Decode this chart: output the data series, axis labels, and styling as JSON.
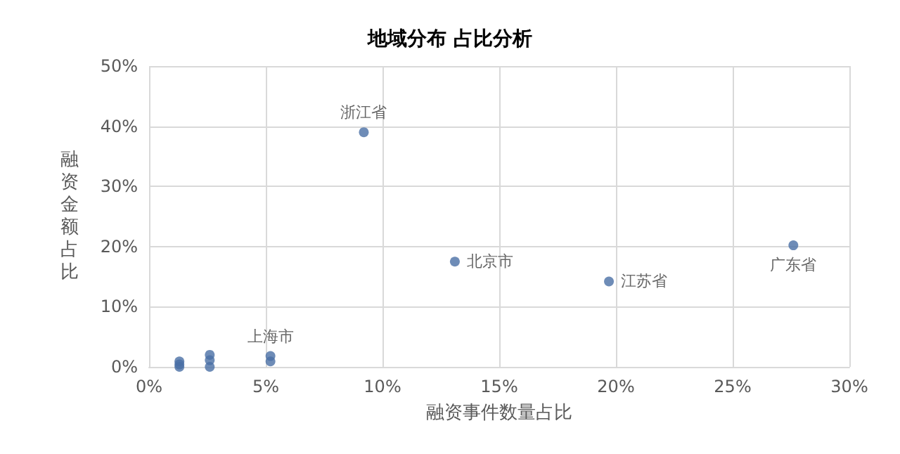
{
  "chart_data": {
    "type": "scatter",
    "title": "地域分布 占比分析",
    "xlabel": "融资事件数量占比",
    "ylabel": "融资金额占比",
    "x": [
      9.2,
      13.1,
      19.7,
      27.6,
      5.2,
      5.2,
      1.3,
      1.3,
      1.3,
      2.6,
      2.6,
      2.6
    ],
    "series": [
      {
        "color": "#4a6fa5",
        "values": [
          39.0,
          17.5,
          14.2,
          20.2,
          1.8,
          0.9,
          0.9,
          0.4,
          0,
          2.0,
          1.1,
          0
        ]
      }
    ],
    "annotations": [
      {
        "text": "浙江省",
        "x": 9.2,
        "y": 39.0
      },
      {
        "text": "北京市",
        "x": 13.1,
        "y": 17.5
      },
      {
        "text": "江苏省",
        "x": 19.7,
        "y": 14.2
      },
      {
        "text": "广东省",
        "x": 27.6,
        "y": 20.2
      },
      {
        "text": "上海市",
        "x": 5.2,
        "y": 1.8
      }
    ],
    "xlim": [
      0,
      30
    ],
    "xticks": [
      {
        "value": 0,
        "label": "0%"
      },
      {
        "value": 5,
        "label": "5%"
      },
      {
        "value": 10,
        "label": "10%"
      },
      {
        "value": 15,
        "label": "15%"
      },
      {
        "value": 20,
        "label": "20%"
      },
      {
        "value": 25,
        "label": "25%"
      },
      {
        "value": 30,
        "label": "30%"
      }
    ],
    "ylim": [
      0,
      50
    ],
    "yticks": [
      {
        "value": 0,
        "label": "0%"
      },
      {
        "value": 10,
        "label": "10%"
      },
      {
        "value": 20,
        "label": "20%"
      },
      {
        "value": 30,
        "label": "30%"
      },
      {
        "value": 40,
        "label": "40%"
      },
      {
        "value": 50,
        "label": "50%"
      }
    ],
    "grid": true,
    "marker": "circle"
  }
}
